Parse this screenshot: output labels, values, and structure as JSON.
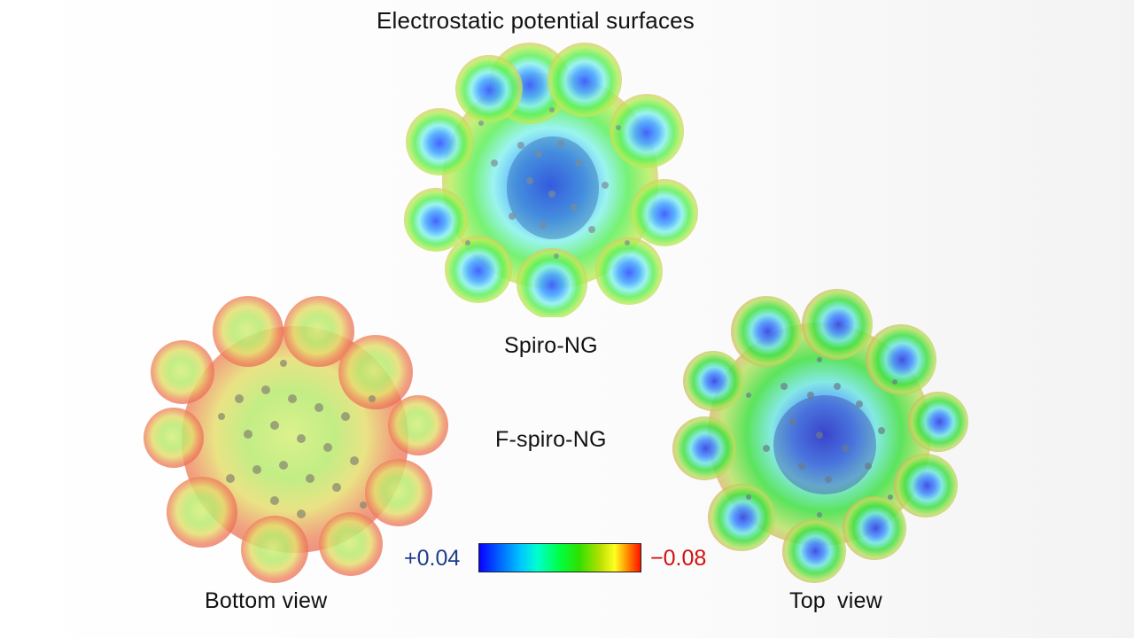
{
  "title": "Electrostatic potential surfaces",
  "molecules": {
    "spiro": {
      "label": "Spiro-NG"
    },
    "fspiro": {
      "label": "F-spiro-NG"
    },
    "bottom_view": {
      "label": "Bottom view"
    },
    "top_view": {
      "label": "Top  view"
    }
  },
  "color_scale": {
    "min_label": "+0.04",
    "max_label": "−0.08",
    "colors": [
      "#0a00ff",
      "#00c8ff",
      "#00ff40",
      "#ffff20",
      "#ff1000"
    ]
  }
}
